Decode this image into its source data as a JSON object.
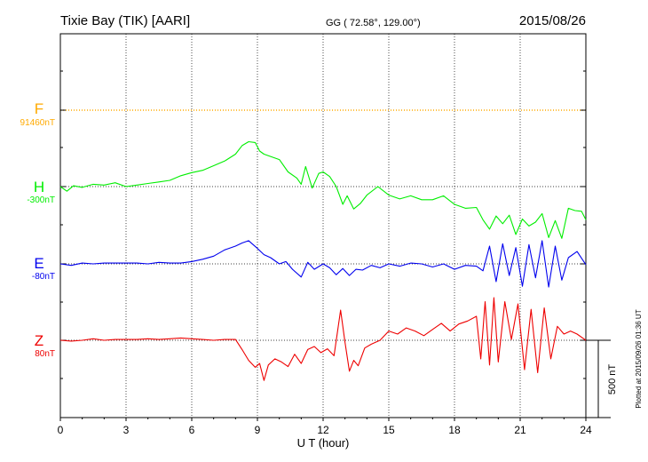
{
  "header": {
    "station": "Tixie Bay (TIK)  [AARI]",
    "coords": "GG ( 72.58°, 129.00°)",
    "date": "2015/08/26"
  },
  "footer": {
    "plotted": "Plotted at 2015/09/26 01:36 UT"
  },
  "chart_data": {
    "type": "line",
    "xlabel": "U T (hour)",
    "ylabel": "",
    "xlim": [
      0,
      24
    ],
    "xticks": [
      0,
      3,
      6,
      9,
      12,
      15,
      18,
      21,
      24
    ],
    "grid": "dotted",
    "scale_bar": "500 nT",
    "series": [
      {
        "name": "F",
        "baseline": "91460nT",
        "color": "#ffaa00",
        "x": [
          0,
          24
        ],
        "y": [
          0,
          0
        ]
      },
      {
        "name": "H",
        "baseline": "-300nT",
        "color": "#00ee00",
        "x": [
          0,
          0.3,
          0.6,
          1,
          1.5,
          2,
          2.5,
          3,
          3.5,
          4,
          4.5,
          5,
          5.5,
          6,
          6.5,
          7,
          7.5,
          8,
          8.3,
          8.6,
          8.9,
          9.1,
          9.3,
          9.6,
          10,
          10.4,
          10.8,
          11,
          11.2,
          11.5,
          11.8,
          12,
          12.3,
          12.6,
          12.9,
          13.1,
          13.4,
          13.7,
          14,
          14.5,
          15,
          15.5,
          16,
          16.5,
          17,
          17.5,
          18,
          18.5,
          19,
          19.3,
          19.6,
          19.9,
          20.2,
          20.5,
          20.8,
          21.1,
          21.4,
          21.7,
          22,
          22.3,
          22.6,
          22.9,
          23.2,
          23.5,
          23.8,
          24
        ],
        "y": [
          0,
          -30,
          5,
          -5,
          15,
          10,
          25,
          0,
          10,
          20,
          30,
          40,
          70,
          90,
          105,
          135,
          165,
          210,
          265,
          290,
          285,
          230,
          210,
          195,
          175,
          95,
          55,
          15,
          130,
          -10,
          85,
          95,
          65,
          0,
          -115,
          -60,
          -145,
          -110,
          -55,
          0,
          -55,
          -80,
          -60,
          -85,
          -85,
          -60,
          -115,
          -140,
          -135,
          -215,
          -275,
          -190,
          -240,
          -185,
          -310,
          -210,
          -255,
          -230,
          -175,
          -330,
          -220,
          -335,
          -140,
          -155,
          -160,
          -215
        ]
      },
      {
        "name": "E",
        "baseline": "-80nT",
        "color": "#0000ee",
        "x": [
          0,
          0.5,
          1,
          1.5,
          2,
          2.5,
          3,
          3.5,
          4,
          4.5,
          5,
          5.5,
          6,
          6.5,
          7,
          7.5,
          8,
          8.3,
          8.6,
          9,
          9.3,
          9.6,
          10,
          10.3,
          10.6,
          11,
          11.3,
          11.6,
          12,
          12.3,
          12.6,
          12.9,
          13.2,
          13.5,
          13.8,
          14.2,
          14.6,
          15,
          15.5,
          16,
          16.5,
          17,
          17.5,
          18,
          18.5,
          19,
          19.3,
          19.6,
          19.9,
          20.2,
          20.5,
          20.8,
          21.1,
          21.4,
          21.7,
          22,
          22.3,
          22.6,
          22.9,
          23.2,
          23.6,
          24
        ],
        "y": [
          0,
          -10,
          5,
          0,
          5,
          5,
          5,
          5,
          0,
          10,
          5,
          5,
          15,
          30,
          50,
          90,
          115,
          135,
          150,
          100,
          60,
          40,
          0,
          15,
          -35,
          -85,
          10,
          -35,
          0,
          -25,
          -70,
          -30,
          -75,
          -35,
          -40,
          -10,
          -25,
          0,
          -15,
          5,
          0,
          -20,
          0,
          -35,
          -10,
          -15,
          -45,
          115,
          -115,
          130,
          -75,
          105,
          -145,
          125,
          -90,
          150,
          -150,
          115,
          -105,
          40,
          80,
          -5
        ]
      },
      {
        "name": "Z",
        "baseline": "80nT",
        "color": "#ee0000",
        "x": [
          0,
          0.5,
          1,
          1.5,
          2,
          2.5,
          3,
          3.5,
          4,
          4.5,
          5,
          5.5,
          6,
          6.5,
          7,
          7.5,
          8,
          8.3,
          8.6,
          8.9,
          9.1,
          9.3,
          9.5,
          9.8,
          10.1,
          10.4,
          10.7,
          11,
          11.3,
          11.6,
          11.9,
          12.2,
          12.5,
          12.8,
          13,
          13.2,
          13.4,
          13.6,
          13.9,
          14.2,
          14.6,
          15,
          15.4,
          15.8,
          16.2,
          16.6,
          17,
          17.4,
          17.8,
          18.2,
          18.6,
          19,
          19.2,
          19.4,
          19.6,
          19.8,
          20,
          20.3,
          20.6,
          20.9,
          21.2,
          21.5,
          21.8,
          22.1,
          22.4,
          22.7,
          23,
          23.3,
          23.6,
          24
        ],
        "y": [
          0,
          -5,
          0,
          10,
          0,
          5,
          5,
          5,
          10,
          5,
          10,
          15,
          10,
          5,
          0,
          5,
          5,
          -60,
          -130,
          -175,
          -150,
          -260,
          -160,
          -120,
          -140,
          -170,
          -90,
          -150,
          -60,
          -40,
          -80,
          -55,
          -100,
          195,
          -15,
          -200,
          -130,
          -165,
          -50,
          -25,
          0,
          60,
          40,
          80,
          60,
          30,
          70,
          110,
          60,
          105,
          125,
          155,
          -120,
          250,
          -160,
          275,
          -140,
          250,
          5,
          235,
          -190,
          200,
          -210,
          210,
          -120,
          90,
          40,
          60,
          40,
          0
        ]
      }
    ]
  }
}
